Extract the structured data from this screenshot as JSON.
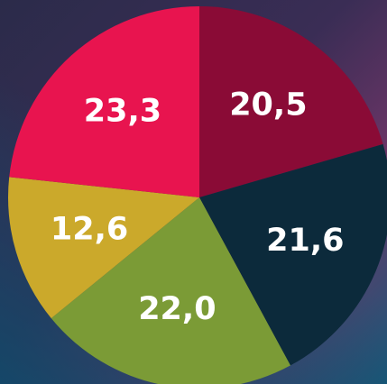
{
  "chart_data": {
    "type": "pie",
    "values": [
      20.5,
      21.6,
      22.0,
      12.6,
      23.3
    ],
    "value_labels": [
      "20,5",
      "21,6",
      "22,0",
      "12,6",
      "23,3"
    ],
    "colors": [
      "#8a0b36",
      "#0c2a3b",
      "#7b9b36",
      "#cba92b",
      "#e8144f"
    ]
  }
}
